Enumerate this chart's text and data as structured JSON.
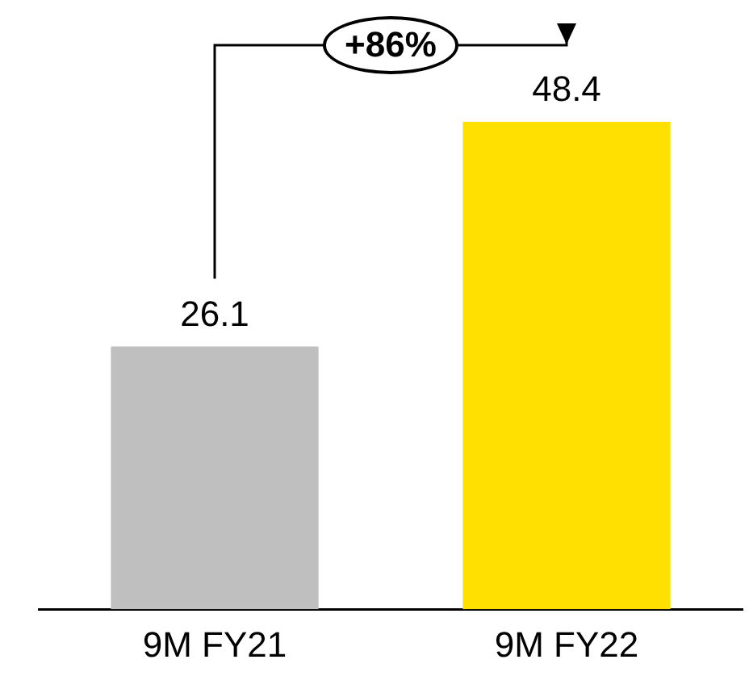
{
  "chart_data": {
    "type": "bar",
    "categories": [
      "9M FY21",
      "9M FY22"
    ],
    "values": [
      26.1,
      48.4
    ],
    "colors": [
      "#bfbfbf",
      "#ffe000"
    ],
    "data_labels": true,
    "grid": false,
    "legend": false,
    "tick_labels": "x",
    "annotations": [
      "+86%"
    ]
  }
}
